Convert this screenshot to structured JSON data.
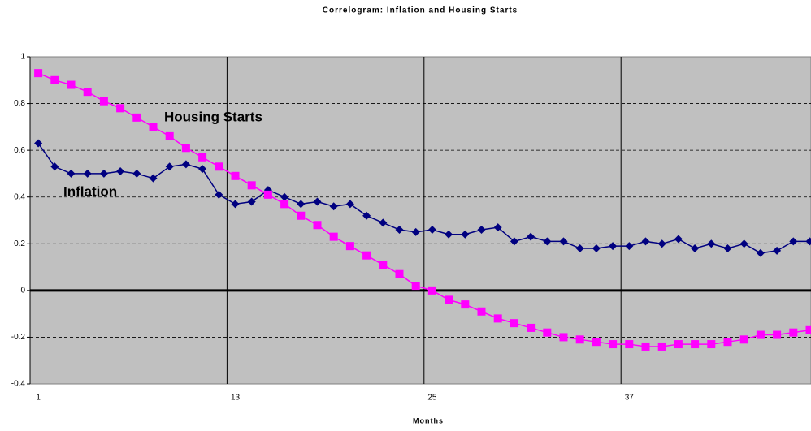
{
  "chart_data": {
    "type": "line",
    "title": "Correlogram: Inflation and Housing Starts",
    "x_label": "Months",
    "categories": [
      1,
      null,
      null,
      null,
      null,
      null,
      null,
      null,
      null,
      null,
      null,
      null,
      13,
      null,
      null,
      null,
      null,
      null,
      null,
      null,
      null,
      null,
      null,
      null,
      25,
      null,
      null,
      null,
      null,
      null,
      null,
      null,
      null,
      null,
      null,
      null,
      37,
      null,
      null,
      null,
      null,
      null,
      null,
      null,
      null,
      null,
      null,
      null
    ],
    "series": [
      {
        "name": "Inflation",
        "color": "#000080",
        "marker": "diamond",
        "values": [
          0.63,
          0.53,
          0.5,
          0.5,
          0.5,
          0.51,
          0.5,
          0.48,
          0.53,
          0.54,
          0.52,
          0.41,
          0.37,
          0.38,
          0.43,
          0.4,
          0.37,
          0.38,
          0.36,
          0.37,
          0.32,
          0.29,
          0.26,
          0.25,
          0.26,
          0.24,
          0.24,
          0.26,
          0.27,
          0.21,
          0.23,
          0.21,
          0.21,
          0.18,
          0.18,
          0.19,
          0.19,
          0.21,
          0.2,
          0.22,
          0.18,
          0.2,
          0.18,
          0.2,
          0.16,
          0.17,
          0.21,
          0.21
        ]
      },
      {
        "name": "Housing Starts",
        "color": "#ff00ff",
        "marker": "square",
        "values": [
          0.93,
          0.9,
          0.88,
          0.85,
          0.81,
          0.78,
          0.74,
          0.7,
          0.66,
          0.61,
          0.57,
          0.53,
          0.49,
          0.45,
          0.41,
          0.37,
          0.32,
          0.28,
          0.23,
          0.19,
          0.15,
          0.11,
          0.07,
          0.02,
          0.0,
          -0.04,
          -0.06,
          -0.09,
          -0.12,
          -0.14,
          -0.16,
          -0.18,
          -0.2,
          -0.21,
          -0.22,
          -0.23,
          -0.23,
          -0.24,
          -0.24,
          -0.23,
          -0.23,
          -0.23,
          -0.22,
          -0.21,
          -0.19,
          -0.19,
          -0.18,
          -0.17
        ]
      }
    ],
    "ylim": [
      -0.4,
      1
    ],
    "yticks": [
      -0.4,
      -0.2,
      0,
      0.2,
      0.4,
      0.6,
      0.8,
      1
    ],
    "grid": true,
    "plot_background": "#c0c0c0"
  }
}
